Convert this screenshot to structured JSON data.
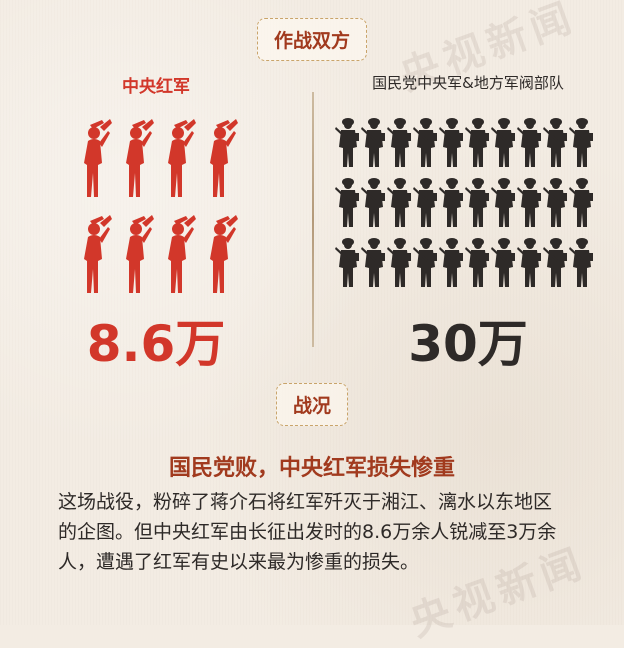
{
  "sections": {
    "combatants_label": "作战双方",
    "result_label": "战况"
  },
  "sides": {
    "left": {
      "name": "中央红军",
      "strength": "8.6万",
      "color": "#d2372a"
    },
    "right": {
      "name": "国民党中央军&地方军阀部队",
      "strength": "30万",
      "color": "#2e2a28"
    }
  },
  "result": {
    "headline": "国民党败，中央红军损失惨重",
    "body": "这场战役，粉碎了蒋介石将红军歼灭于湘江、漓水以东地区的企图。但中央红军由长征出发时的8.6万余人锐减至3万余人，遭遇了红军有史以来最为惨重的损失。"
  },
  "watermark": {
    "text": "央视新闻"
  },
  "icons": {
    "red_soldier": "bugler-icon",
    "black_soldier": "rifleman-icon"
  }
}
